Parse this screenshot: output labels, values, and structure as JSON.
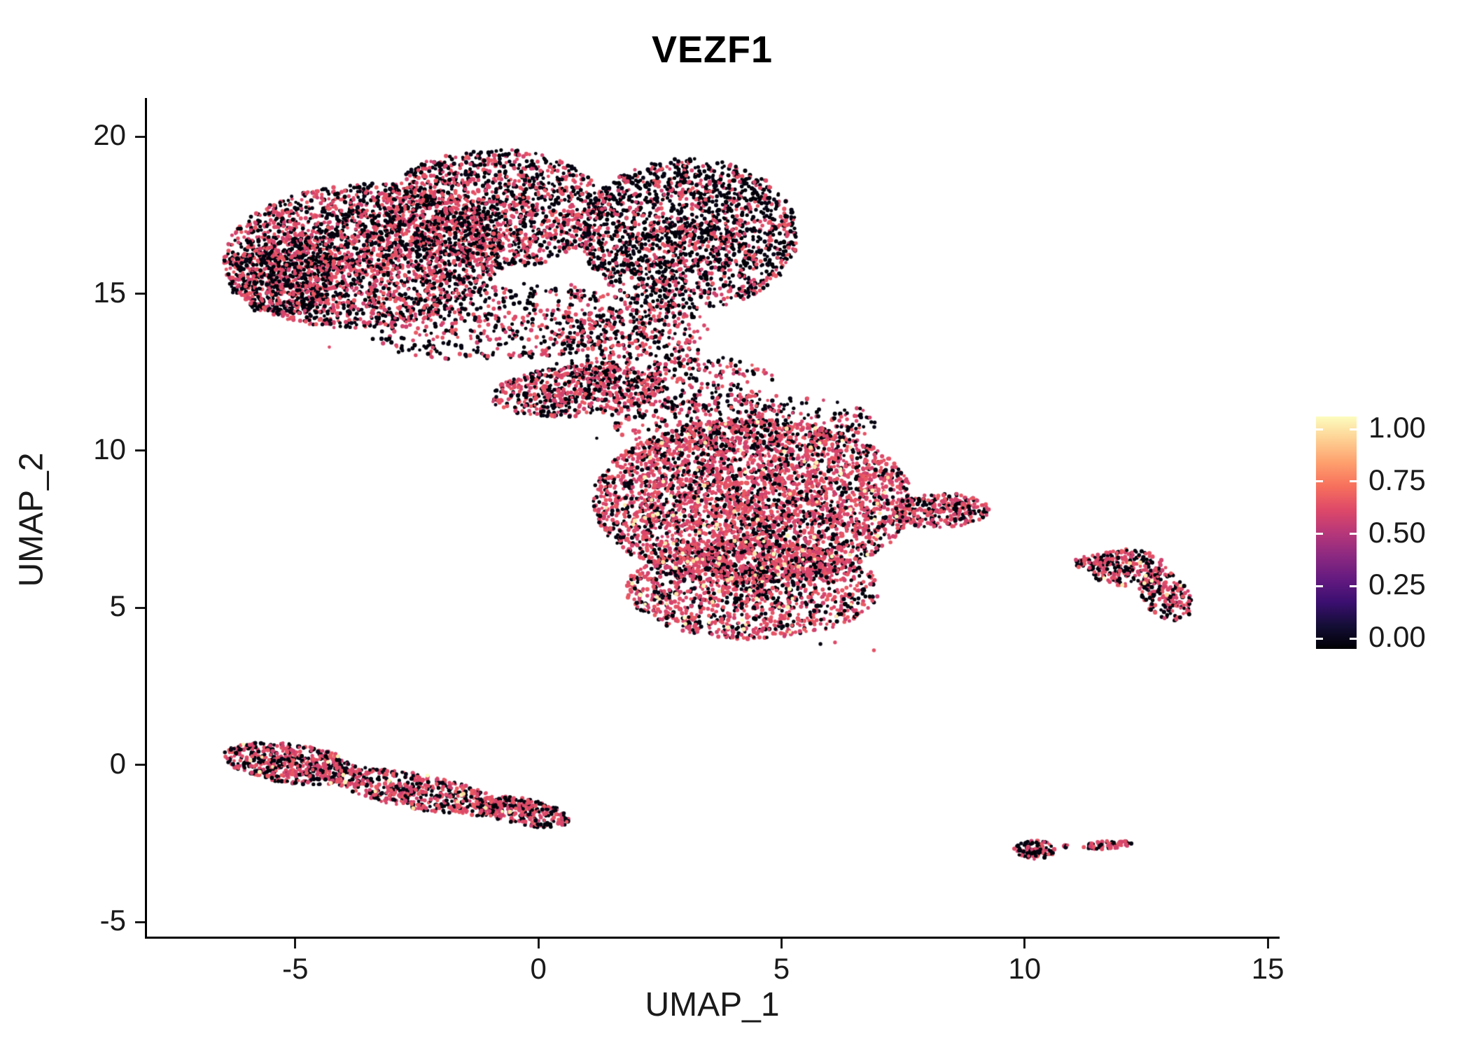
{
  "title": "VEZF1",
  "axes": {
    "xlabel": "UMAP_1",
    "ylabel": "UMAP_2",
    "x_ticks": [
      -5,
      0,
      5,
      10,
      15
    ],
    "y_ticks": [
      -5,
      0,
      5,
      10,
      15,
      20
    ]
  },
  "colorbar": {
    "tick_labels": [
      "1.00",
      "0.75",
      "0.50",
      "0.25",
      "0.00"
    ],
    "gradient_top_to_bottom": [
      "#fcfdbf",
      "#fecf92",
      "#fe9f6d",
      "#f7705c",
      "#de4968",
      "#b73779",
      "#8c2981",
      "#641a80",
      "#3b0f70",
      "#140e36",
      "#000004"
    ]
  },
  "chart_data": {
    "type": "scatter",
    "title": "VEZF1",
    "xlabel": "UMAP_1",
    "ylabel": "UMAP_2",
    "xlim": [
      -8.05,
      15.2
    ],
    "ylim": [
      -5.51,
      21.23
    ],
    "grid": false,
    "legend_position": "right-colorbar",
    "color_encoding": {
      "scale": "magma",
      "value_range": [
        0,
        1
      ],
      "dominant_values": {
        "black_unexpressed": 0.0,
        "pink_expressed": 0.6,
        "pale_yellow_high": 0.97
      }
    },
    "seed": 42,
    "point_radius_px": [
      2.3,
      3.2
    ],
    "clusters": [
      {
        "name": "upper-left-lobe",
        "cx": -3.6,
        "cy": 16.2,
        "rx": 2.9,
        "ry": 2.3,
        "rot": 0.15,
        "n": 2600,
        "w_pink": 0.52,
        "w_yellow": 0.0
      },
      {
        "name": "upper-left-edge",
        "cx": -5.3,
        "cy": 15.6,
        "rx": 1.1,
        "ry": 1.3,
        "rot": 0.0,
        "n": 500,
        "w_pink": 0.38,
        "w_yellow": 0.0
      },
      {
        "name": "upper-mid-lobe",
        "cx": -0.9,
        "cy": 17.7,
        "rx": 2.3,
        "ry": 1.9,
        "rot": 0.0,
        "n": 1500,
        "w_pink": 0.5,
        "w_yellow": 0.0
      },
      {
        "name": "upper-right-lobe",
        "cx": 3.1,
        "cy": 16.9,
        "rx": 2.25,
        "ry": 2.4,
        "rot": 0.0,
        "n": 1900,
        "w_pink": 0.36,
        "w_yellow": 0.0
      },
      {
        "name": "upper-bottom-scatter",
        "cx": -0.6,
        "cy": 14.1,
        "rx": 3.0,
        "ry": 1.2,
        "rot": 0.1,
        "n": 550,
        "w_pink": 0.45,
        "w_yellow": 0.0
      },
      {
        "name": "upper-bridge-diag",
        "cx": 1.9,
        "cy": 13.4,
        "rx": 1.7,
        "ry": 1.2,
        "rot": 0.4,
        "n": 380,
        "w_pink": 0.5,
        "w_yellow": 0.0
      },
      {
        "name": "bridge-strip",
        "cx": 0.8,
        "cy": 11.9,
        "rx": 1.8,
        "ry": 0.8,
        "rot": 0.12,
        "n": 650,
        "w_pink": 0.58,
        "w_yellow": 0.0
      },
      {
        "name": "bridge-right-scatter",
        "cx": 3.4,
        "cy": 12.1,
        "rx": 1.5,
        "ry": 0.9,
        "rot": 0.0,
        "n": 200,
        "w_pink": 0.5,
        "w_yellow": 0.0
      },
      {
        "name": "central-main",
        "cx": 4.4,
        "cy": 8.4,
        "rx": 3.3,
        "ry": 2.6,
        "rot": 0.0,
        "n": 3800,
        "w_pink": 0.7,
        "w_yellow": 0.02
      },
      {
        "name": "central-lower",
        "cx": 4.4,
        "cy": 5.6,
        "rx": 2.6,
        "ry": 1.6,
        "rot": 0.0,
        "n": 1400,
        "w_pink": 0.62,
        "w_yellow": 0.03
      },
      {
        "name": "central-right-tail",
        "cx": 8.3,
        "cy": 8.1,
        "rx": 1.0,
        "ry": 0.55,
        "rot": 0.1,
        "n": 280,
        "w_pink": 0.68,
        "w_yellow": 0.0
      },
      {
        "name": "central-top-scatter",
        "cx": 4.2,
        "cy": 10.9,
        "rx": 2.8,
        "ry": 0.9,
        "rot": 0.0,
        "n": 450,
        "w_pink": 0.52,
        "w_yellow": 0.0
      },
      {
        "name": "right-cluster-a",
        "cx": 12.1,
        "cy": 6.3,
        "rx": 0.8,
        "ry": 0.6,
        "rot": 0.0,
        "n": 220,
        "w_pink": 0.6,
        "w_yellow": 0.02
      },
      {
        "name": "right-cluster-b",
        "cx": 12.9,
        "cy": 5.4,
        "rx": 0.5,
        "ry": 0.85,
        "rot": 0.35,
        "n": 200,
        "w_pink": 0.6,
        "w_yellow": 0.02
      },
      {
        "name": "right-cluster-c",
        "cx": 11.4,
        "cy": 6.45,
        "rx": 0.4,
        "ry": 0.22,
        "rot": 0.0,
        "n": 50,
        "w_pink": 0.55,
        "w_yellow": 0.0
      },
      {
        "name": "left-strip-head",
        "cx": -5.1,
        "cy": 0.05,
        "rx": 1.4,
        "ry": 0.62,
        "rot": -0.22,
        "n": 550,
        "w_pink": 0.55,
        "w_yellow": 0.02
      },
      {
        "name": "left-strip-mid",
        "cx": -2.5,
        "cy": -0.85,
        "rx": 1.9,
        "ry": 0.55,
        "rot": -0.3,
        "n": 550,
        "w_pink": 0.58,
        "w_yellow": 0.02
      },
      {
        "name": "left-strip-tail",
        "cx": -0.3,
        "cy": -1.5,
        "rx": 1.0,
        "ry": 0.42,
        "rot": -0.28,
        "n": 280,
        "w_pink": 0.58,
        "w_yellow": 0.01
      },
      {
        "name": "bottom-right-dot-a",
        "cx": 10.2,
        "cy": -2.7,
        "rx": 0.42,
        "ry": 0.3,
        "rot": 0.0,
        "n": 110,
        "w_pink": 0.42,
        "w_yellow": 0.0
      },
      {
        "name": "bottom-right-dot-b",
        "cx": 11.7,
        "cy": -2.55,
        "rx": 0.5,
        "ry": 0.13,
        "rot": 0.12,
        "n": 70,
        "w_pink": 0.66,
        "w_yellow": 0.0
      },
      {
        "name": "bottom-right-dot-c",
        "cx": 10.85,
        "cy": -2.6,
        "rx": 0.07,
        "ry": 0.06,
        "rot": 0.0,
        "n": 6,
        "w_pink": 0.5,
        "w_yellow": 0.0
      }
    ],
    "outliers": [
      [
        6.9,
        3.65,
        0.62
      ],
      [
        9.0,
        8.2,
        0.6
      ],
      [
        8.85,
        8.0,
        0.02
      ],
      [
        0.5,
        13.4,
        0.02
      ],
      [
        -4.3,
        13.3,
        0.6
      ],
      [
        1.2,
        10.4,
        0.02
      ],
      [
        5.8,
        3.85,
        0.02
      ],
      [
        6.1,
        3.9,
        0.6
      ]
    ]
  }
}
